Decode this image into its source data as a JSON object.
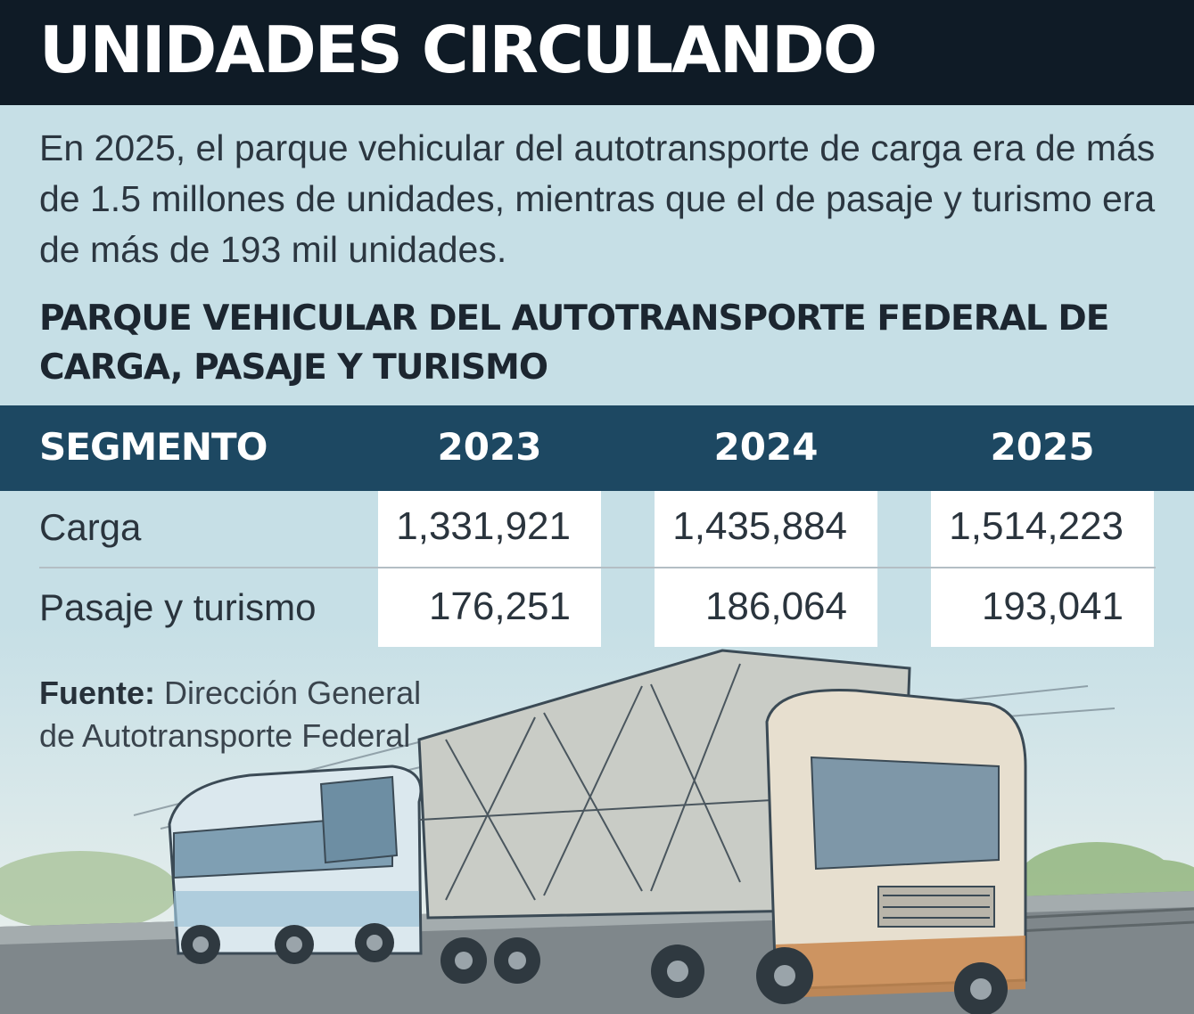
{
  "header": {
    "title": "UNIDADES CIRCULANDO"
  },
  "intro": "En 2025, el parque vehicular del autotransporte de carga era de más de 1.5 millones de unidades, mientras que el de pasaje y turismo era de más de 193 mil unidades.",
  "subtitle": "PARQUE VEHICULAR DEL AUTOTRANSPORTE FEDERAL DE CARGA, PASAJE Y TURISMO",
  "table": {
    "headers": [
      "SEGMENTO",
      "2023",
      "2024",
      "2025"
    ],
    "rows": [
      {
        "label": "Carga",
        "values": [
          "1,331,921",
          "1,435,884",
          "1,514,223"
        ]
      },
      {
        "label": "Pasaje y turismo",
        "values": [
          "176,251",
          "186,064",
          "193,041"
        ]
      }
    ]
  },
  "source": {
    "label": "Fuente:",
    "text": "Dirección General de Autotransporte Federal"
  },
  "illustration": {
    "icons": [
      "bus-icon",
      "truck-icon"
    ]
  },
  "colors": {
    "header_bg": "#0f1b26",
    "table_header_bg": "#1d4862",
    "page_bg": "#c6dfe6"
  }
}
